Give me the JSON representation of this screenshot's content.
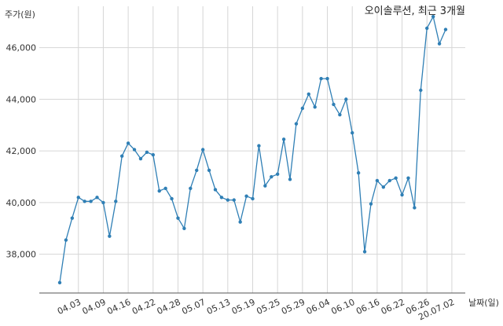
{
  "chart_data": {
    "type": "line",
    "title": "오이솔루션, 최근 3개월",
    "ylabel": "주가(원)",
    "xlabel": "날짜(일)",
    "ylim": [
      36500,
      47600
    ],
    "yticks": [
      38000,
      40000,
      42000,
      44000,
      46000
    ],
    "ytick_labels": [
      "38,000",
      "40,000",
      "42,000",
      "44,000",
      "46,000"
    ],
    "xtick_labels": [
      "04.03",
      "04.09",
      "04.16",
      "04.22",
      "04.28",
      "05.07",
      "05.13",
      "05.19",
      "05.25",
      "05.29",
      "06.04",
      "06.10",
      "06.16",
      "06.22",
      "06.26",
      "20.07.02"
    ],
    "xtick_positions": [
      3,
      7,
      11,
      15,
      19,
      23,
      27,
      31,
      35,
      39,
      43,
      47,
      51,
      55,
      59,
      63
    ],
    "grid": true,
    "color": "#2f7fb5",
    "series": [
      {
        "name": "",
        "values": [
          36900,
          38550,
          39400,
          40200,
          40050,
          40050,
          40200,
          40000,
          38700,
          40050,
          41800,
          42300,
          42050,
          41700,
          41950,
          41850,
          40450,
          40550,
          40150,
          39400,
          39000,
          40550,
          41250,
          42050,
          41250,
          40500,
          40200,
          40100,
          40100,
          39250,
          40250,
          40150,
          42200,
          40650,
          41000,
          41100,
          42450,
          40900,
          43050,
          43650,
          44200,
          43700,
          44800,
          44800,
          43800,
          43400,
          44000,
          42700,
          41150,
          38100,
          39950,
          40850,
          40600,
          40850,
          40950,
          40300,
          40950,
          39800,
          44350,
          46750,
          47200,
          46150,
          46700
        ]
      }
    ]
  }
}
